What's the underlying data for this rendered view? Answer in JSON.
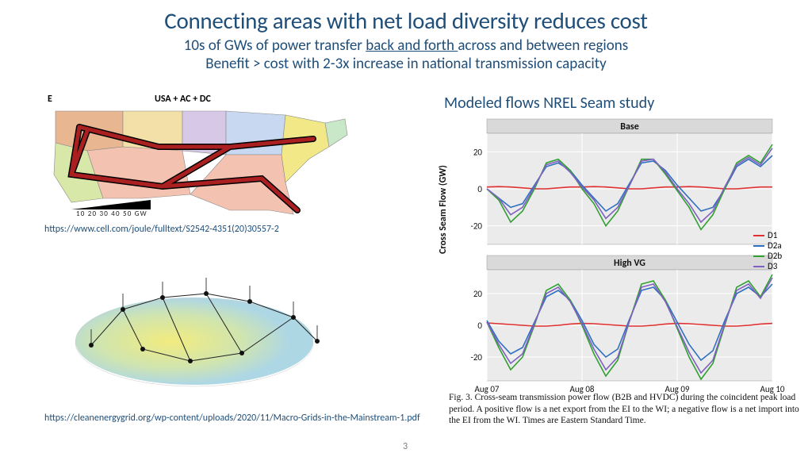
{
  "title": "Connecting areas with net load diversity reduces cost",
  "subtitle1_pre": "10s of GWs of power transfer ",
  "subtitle1_u": "back and forth ",
  "subtitle1_post": "across and between regions",
  "subtitle2": "Benefit > cost with 2-3x increase in national transmission capacity",
  "right_title": "Modeled flows NREL Seam study",
  "link1": "https://www.cell.com/joule/fulltext/S2542-4351(20)30557-2",
  "link2": "https://cleanenergygrid.org/wp-content/uploads/2020/11/Macro-Grids-in-the-Mainstream-1.pdf",
  "slide_number": "3",
  "us_map": {
    "label": "USA + AC + DC",
    "corner_label": "E",
    "scale_ticks": "10 20 30 40 50 GW",
    "state_colors": {
      "northwest": "#e8b690",
      "california": "#d8e8a8",
      "mountain": "#f2e0a8",
      "plains_n": "#d8c8e8",
      "plains_s": "#f4c2b0",
      "midwest": "#c8d8f0",
      "southeast": "#f4c2b0",
      "northeast": "#c8e8c8",
      "midatl": "#f2e888"
    },
    "line_color": "#aa2020",
    "line_shadow": "#000000",
    "scale_color": "#000000"
  },
  "flow_charts": {
    "panels": [
      {
        "title": "Base",
        "ylim": [
          -30,
          30
        ],
        "yticks": [
          -20,
          0,
          20
        ]
      },
      {
        "title": "High VG",
        "ylim": [
          -35,
          35
        ],
        "yticks": [
          -20,
          0,
          20
        ]
      }
    ],
    "xlabels": [
      "Aug 07",
      "Aug 08",
      "Aug 09",
      "Aug 10"
    ],
    "yaxis_label": "Cross Seam Flow (GW)",
    "bg": "#ebebeb",
    "header_bg": "#d9d9d9",
    "grid": "#ffffff",
    "series_colors": {
      "D1": "#e03030",
      "D2a": "#3070c0",
      "D2b": "#30a030",
      "D3": "#8060c0"
    },
    "legend_order": [
      "D1",
      "D2a",
      "D2b",
      "D3"
    ],
    "series_base": {
      "D1": [
        1,
        1.2,
        1,
        0.5,
        0,
        0,
        0.5,
        1,
        1,
        1.2,
        1,
        0.5,
        0,
        0,
        0.5,
        1,
        1,
        1.2,
        1,
        0.5,
        0,
        0,
        0.5,
        1,
        1
      ],
      "D2a": [
        0,
        -5,
        -10,
        -8,
        2,
        12,
        14,
        10,
        2,
        -5,
        -12,
        -8,
        3,
        14,
        15,
        10,
        2,
        -5,
        -12,
        -10,
        0,
        12,
        16,
        12,
        18
      ],
      "D2b": [
        0,
        -6,
        -18,
        -12,
        0,
        14,
        16,
        10,
        0,
        -8,
        -20,
        -12,
        2,
        16,
        16,
        8,
        -1,
        -10,
        -22,
        -14,
        0,
        14,
        18,
        14,
        24
      ],
      "D3": [
        0,
        -5,
        -14,
        -10,
        1,
        13,
        15,
        9,
        1,
        -6,
        -16,
        -10,
        2,
        15,
        16,
        9,
        0,
        -8,
        -18,
        -12,
        1,
        13,
        17,
        13,
        22
      ]
    },
    "series_highvg": {
      "D1": [
        1.5,
        1,
        0.5,
        0,
        -0.5,
        -0.5,
        0,
        0.8,
        1.2,
        1,
        0.5,
        0,
        -0.5,
        -0.5,
        0,
        0.8,
        1.2,
        1,
        0.5,
        0,
        -0.5,
        -0.5,
        0,
        0.8,
        1.2
      ],
      "D2a": [
        3,
        -10,
        -18,
        -14,
        2,
        18,
        22,
        16,
        3,
        -12,
        -20,
        -15,
        4,
        22,
        24,
        16,
        2,
        -12,
        -22,
        -16,
        3,
        20,
        24,
        18,
        26
      ],
      "D2b": [
        2,
        -14,
        -28,
        -20,
        0,
        22,
        26,
        16,
        0,
        -18,
        -32,
        -22,
        3,
        26,
        28,
        16,
        -2,
        -20,
        -34,
        -24,
        0,
        24,
        28,
        18,
        32
      ],
      "D3": [
        2,
        -12,
        -24,
        -18,
        1,
        20,
        24,
        15,
        1,
        -15,
        -28,
        -20,
        3,
        24,
        26,
        15,
        -1,
        -17,
        -30,
        -22,
        1,
        22,
        26,
        17,
        30
      ]
    }
  },
  "caption": "Fig. 3.  Cross-seam transmission power flow (B2B and HVDC) during the coincident peak load period. A positive flow is a net export from the EI to the WI; a negative flow is a net import into the EI from the WI. Times are Eastern Standard Time."
}
